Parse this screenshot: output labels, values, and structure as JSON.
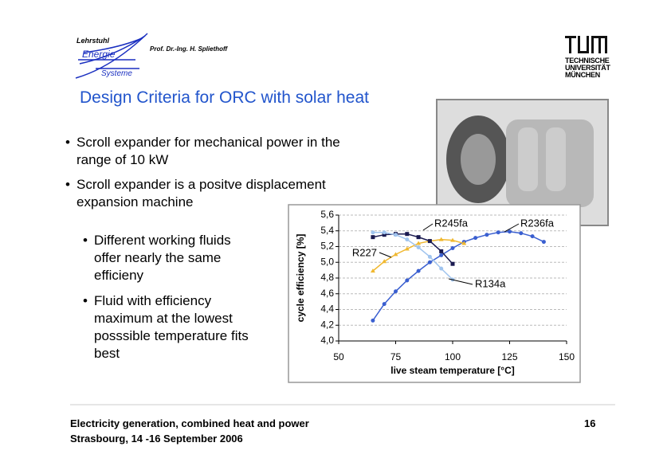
{
  "header": {
    "chair": "Lehrstuhl",
    "chair_word1": "Energie",
    "chair_word2": "Systeme",
    "professor": "Prof. Dr.-Ing. H. Spliethoff",
    "university": [
      "TECHNISCHE",
      "UNIVERSITÄT",
      "MÜNCHEN"
    ]
  },
  "title": "Design Criteria for ORC with solar heat",
  "bullets": [
    "Scroll expander for mechanical power in the range of 10 kW",
    "Scroll expander is a positve displacement expansion machine"
  ],
  "sub_bullets": [
    "Different working fluids offer nearly the same efficieny",
    "Fluid with efficiency maximum at the lowest posssible temperature fits best"
  ],
  "footer": {
    "line1": "Electricity generation, combined heat and power",
    "line2": "Strasbourg, 14 -16 September 2006",
    "page": "16"
  },
  "chart_data": {
    "type": "line",
    "x_label": "live steam temperature [°C]",
    "y_label": "cycle efficiency [%]",
    "xlim": [
      50,
      150
    ],
    "xticks": [
      50,
      75,
      100,
      125,
      150
    ],
    "ylim": [
      4.0,
      5.6
    ],
    "yticks": [
      {
        "value": 4.0,
        "label": "4,0"
      },
      {
        "value": 4.2,
        "label": "4,2"
      },
      {
        "value": 4.4,
        "label": "4,4"
      },
      {
        "value": 4.6,
        "label": "4,6"
      },
      {
        "value": 4.8,
        "label": "4,8"
      },
      {
        "value": 5.0,
        "label": "5,0"
      },
      {
        "value": 5.2,
        "label": "5,2"
      },
      {
        "value": 5.4,
        "label": "5,4"
      },
      {
        "value": 5.6,
        "label": "5,6"
      }
    ],
    "grid": true,
    "series": [
      {
        "name": "R245fa",
        "color": "#3a5fd0",
        "marker": "circle",
        "x": [
          65,
          70,
          75,
          80,
          85,
          90,
          95,
          100,
          105,
          110,
          115,
          120,
          125,
          130,
          135,
          140
        ],
        "values": [
          4.26,
          4.47,
          4.63,
          4.77,
          4.89,
          5.0,
          5.09,
          5.18,
          5.26,
          5.31,
          5.35,
          5.38,
          5.39,
          5.37,
          5.33,
          5.26
        ]
      },
      {
        "name": "R236fa",
        "color": "#f0b830",
        "marker": "triangle",
        "x": [
          65,
          70,
          75,
          80,
          85,
          90,
          95,
          100,
          105
        ],
        "values": [
          4.89,
          5.01,
          5.1,
          5.17,
          5.24,
          5.27,
          5.29,
          5.28,
          5.24
        ]
      },
      {
        "name": "R227",
        "color": "#1a1a50",
        "marker": "square",
        "x": [
          65,
          70,
          75,
          80,
          85,
          90,
          95,
          100
        ],
        "values": [
          5.32,
          5.35,
          5.36,
          5.36,
          5.32,
          5.27,
          5.14,
          4.98
        ]
      },
      {
        "name": "R134a",
        "color": "#a0c4ee",
        "marker": "circle",
        "x": [
          65,
          70,
          75,
          80,
          85,
          90,
          95,
          100
        ],
        "values": [
          5.38,
          5.38,
          5.35,
          5.29,
          5.19,
          5.07,
          4.92,
          4.78
        ]
      }
    ]
  }
}
